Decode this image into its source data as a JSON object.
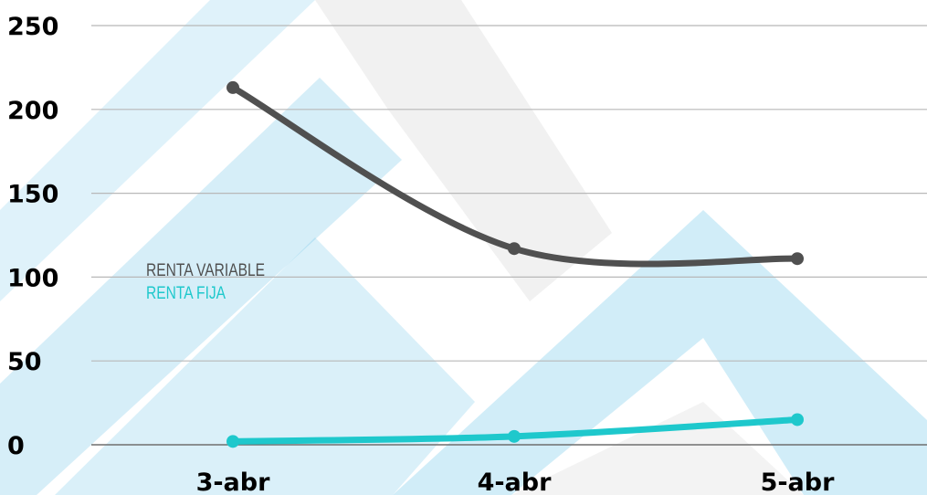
{
  "chart_data": {
    "type": "line",
    "title": "",
    "xlabel": "",
    "ylabel": "",
    "categories": [
      "3-abr",
      "4-abr",
      "5-abr"
    ],
    "ylim": [
      0,
      250
    ],
    "yticks": [
      0,
      50,
      100,
      150,
      200,
      250
    ],
    "grid": true,
    "legend_position": "center-left",
    "series": [
      {
        "name": "RENTA VARIABLE",
        "values": [
          213,
          117,
          111
        ],
        "color": "#505050"
      },
      {
        "name": "RENTA FIJA",
        "values": [
          2,
          5,
          15
        ],
        "color": "#1ec8cc"
      }
    ]
  },
  "background": {
    "watermark": "chevron-pattern",
    "colors": [
      "#1aa3da",
      "#e5e5e5"
    ]
  }
}
